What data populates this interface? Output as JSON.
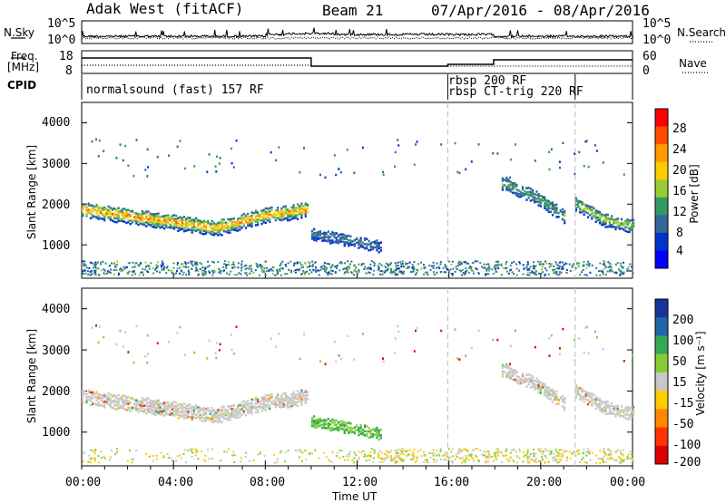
{
  "header": {
    "station": "Adak West (fitACF)",
    "beam": "Beam 21",
    "date_range": "07/Apr/2016 - 08/Apr/2016"
  },
  "top_panels": {
    "nsky_label": "N.Sky",
    "nsearch_label": "N.Search",
    "noise_ticks_left": [
      "10^5",
      "10^0"
    ],
    "noise_ticks_right": [
      "10^5",
      "10^0"
    ],
    "freq_label_line1": "Freq.",
    "freq_label_line2": "[MHz]",
    "freq_ticks": [
      "18",
      "8"
    ],
    "nave_label": "Nave",
    "nave_ticks": [
      "60",
      "0"
    ],
    "cpid_label": "CPID",
    "cpid_segments": [
      "normalsound (fast) 157 RF",
      "rbsp 200 RF",
      "rbsp CT-trig 220 RF"
    ]
  },
  "x_axis": {
    "label": "Time UT",
    "ticks": [
      "00:00",
      "04:00",
      "08:00",
      "12:00",
      "16:00",
      "20:00",
      "00:00"
    ]
  },
  "chart_data": [
    {
      "type": "heatmap",
      "title": "Power",
      "ylabel": "Slant Range [km]",
      "yticks": [
        "4000",
        "3000",
        "2000",
        "1000"
      ],
      "ylim": [
        180,
        4500
      ],
      "xlim_hours": [
        0,
        24
      ],
      "colorbar_label": "Power [dB]",
      "colorbar_ticks": [
        "28",
        "24",
        "20",
        "16",
        "12",
        "8",
        "4"
      ],
      "colorbar_colors": [
        "#ff0000",
        "#ff4c00",
        "#ff9a00",
        "#ffcc00",
        "#99cc33",
        "#339966",
        "#336699",
        "#0033cc",
        "#0000ff"
      ],
      "regions": [
        {
          "t_start": 0.0,
          "t_end": 9.8,
          "range_center": [
            1850,
            1700,
            1550,
            1400,
            1700,
            1850
          ],
          "thickness": 350,
          "peak_db": 26
        },
        {
          "t_start": 10.0,
          "t_end": 13.0,
          "range_center": [
            1250,
            1100,
            950
          ],
          "thickness": 250,
          "peak_db": 10
        },
        {
          "t_start": 18.3,
          "t_end": 21.0,
          "range_center": [
            2500,
            2200,
            1700
          ],
          "thickness": 300,
          "peak_db": 14
        },
        {
          "t_start": 21.5,
          "t_end": 24.0,
          "range_center": [
            2000,
            1600,
            1450
          ],
          "thickness": 300,
          "peak_db": 20
        }
      ]
    },
    {
      "type": "heatmap",
      "title": "Velocity",
      "ylabel": "Slant Range [km]",
      "yticks": [
        "4000",
        "3000",
        "2000",
        "1000"
      ],
      "ylim": [
        180,
        4500
      ],
      "xlim_hours": [
        0,
        24
      ],
      "colorbar_label": "Velocity [m s⁻¹]",
      "colorbar_ticks": [
        "200",
        "100",
        "50",
        "15",
        "-15",
        "-50",
        "-100",
        "-200"
      ],
      "colorbar_colors": [
        "#1a3399",
        "#2266aa",
        "#33aa55",
        "#88cc33",
        "#c8c8c8",
        "#ffcc00",
        "#ff8800",
        "#ff3300",
        "#dd0000"
      ]
    }
  ]
}
